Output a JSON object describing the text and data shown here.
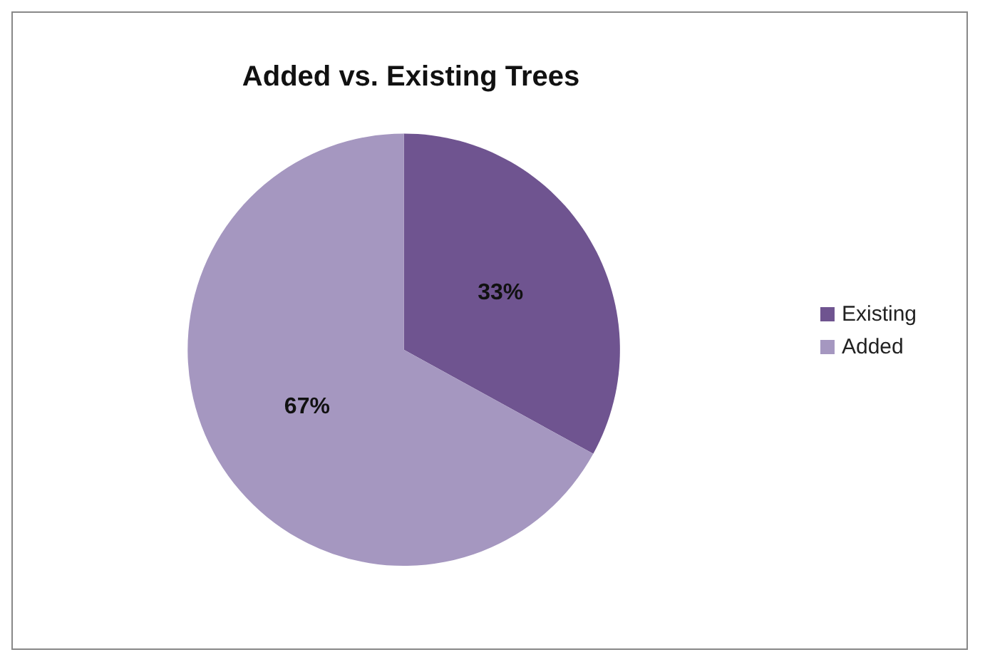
{
  "chart_data": {
    "type": "pie",
    "title": "Added vs. Existing Trees",
    "categories": [
      "Existing",
      "Added"
    ],
    "values": [
      33,
      67
    ],
    "value_labels": [
      "33%",
      "67%"
    ],
    "colors": [
      "#6f5490",
      "#a597c0"
    ],
    "legend": "right"
  }
}
